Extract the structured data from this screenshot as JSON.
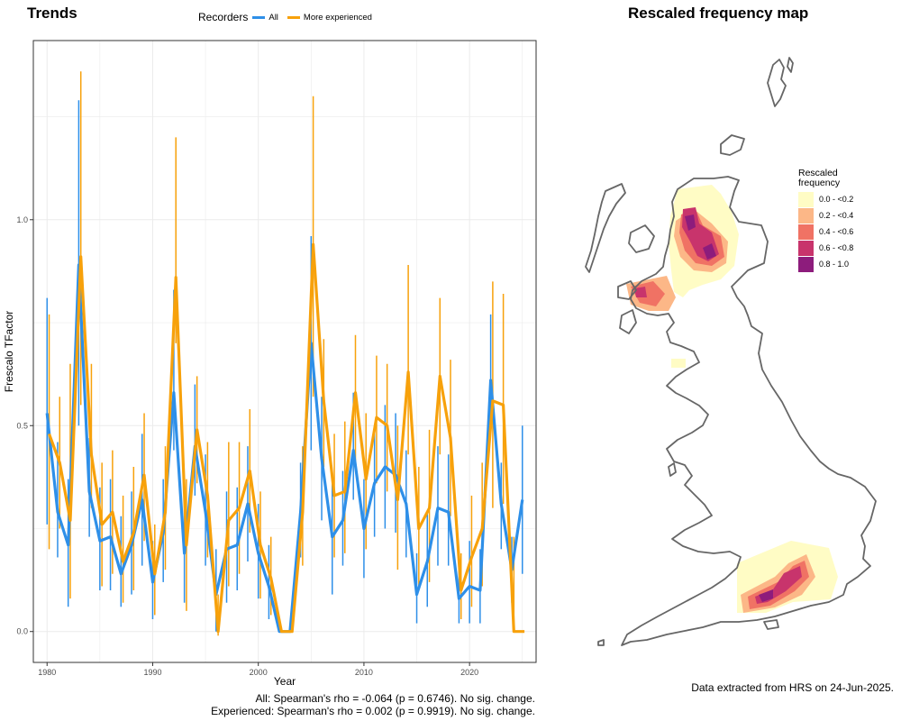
{
  "trends_panel": {
    "title": "Trends",
    "legend": {
      "title": "Recorders",
      "items": [
        {
          "label": "All",
          "color": "#2e8fe8"
        },
        {
          "label": "More experienced",
          "color": "#f7a10b"
        }
      ]
    },
    "stats": [
      "All: Spearman's rho = -0.064 (p = 0.6746). No sig. change.",
      "Experienced: Spearman's rho = 0.002 (p = 0.9919). No sig. change."
    ]
  },
  "chart_data": {
    "type": "line",
    "xlabel": "Year",
    "ylabel": "Frescalo TFactor",
    "xlim": [
      1978.7,
      2026.3
    ],
    "ylim": [
      -0.075,
      1.435
    ],
    "xticks": [
      1980,
      1990,
      2000,
      2010,
      2020
    ],
    "yticks": [
      0.0,
      0.5,
      1.0
    ],
    "ytick_labels": [
      "0.0",
      "0.5",
      "1.0"
    ],
    "grid": true,
    "legend_position": "top",
    "x": [
      1980,
      1981,
      1982,
      1983,
      1984,
      1985,
      1986,
      1987,
      1988,
      1989,
      1990,
      1991,
      1992,
      1993,
      1994,
      1995,
      1996,
      1997,
      1998,
      1999,
      2000,
      2001,
      2002,
      2003,
      2004,
      2005,
      2006,
      2007,
      2008,
      2009,
      2010,
      2011,
      2012,
      2013,
      2014,
      2015,
      2016,
      2017,
      2018,
      2019,
      2020,
      2021,
      2022,
      2023,
      2024,
      2025
    ],
    "series": [
      {
        "name": "All",
        "color": "#2e8fe8",
        "values": [
          0.53,
          0.29,
          0.21,
          0.89,
          0.34,
          0.22,
          0.23,
          0.14,
          0.21,
          0.32,
          0.12,
          0.24,
          0.58,
          0.19,
          0.45,
          0.29,
          0.09,
          0.2,
          0.21,
          0.31,
          0.19,
          0.11,
          0.0,
          0.0,
          0.29,
          0.7,
          0.42,
          0.23,
          0.27,
          0.44,
          0.25,
          0.36,
          0.4,
          0.38,
          0.31,
          0.09,
          0.17,
          0.3,
          0.29,
          0.08,
          0.11,
          0.1,
          0.61,
          0.31,
          0.15,
          0.32
        ],
        "lower": [
          0.26,
          0.18,
          0.06,
          0.5,
          0.23,
          0.1,
          0.1,
          0.06,
          0.09,
          0.16,
          0.03,
          0.12,
          0.44,
          0.07,
          0.33,
          0.16,
          0.0,
          0.07,
          0.1,
          0.17,
          0.08,
          0.03,
          0.0,
          0.0,
          0.18,
          0.44,
          0.27,
          0.09,
          0.16,
          0.32,
          0.13,
          0.23,
          0.25,
          0.24,
          0.18,
          0.02,
          0.06,
          0.16,
          0.16,
          0.02,
          0.02,
          0.02,
          0.48,
          0.2,
          0.07,
          0.14
        ],
        "upper": [
          0.81,
          0.46,
          0.37,
          1.29,
          0.47,
          0.35,
          0.37,
          0.28,
          0.34,
          0.48,
          0.22,
          0.37,
          0.83,
          0.32,
          0.6,
          0.43,
          0.2,
          0.34,
          0.35,
          0.45,
          0.31,
          0.21,
          0.0,
          0.0,
          0.41,
          0.96,
          0.57,
          0.36,
          0.39,
          0.58,
          0.37,
          0.5,
          0.55,
          0.53,
          0.44,
          0.19,
          0.29,
          0.45,
          0.43,
          0.15,
          0.22,
          0.2,
          0.77,
          0.41,
          0.23,
          0.5
        ]
      },
      {
        "name": "More experienced",
        "color": "#f7a10b",
        "values": [
          0.48,
          0.41,
          0.27,
          0.91,
          0.43,
          0.26,
          0.29,
          0.17,
          0.24,
          0.38,
          0.14,
          0.29,
          0.86,
          0.21,
          0.49,
          0.33,
          0.0,
          0.27,
          0.3,
          0.39,
          0.21,
          0.13,
          0.0,
          0.0,
          0.29,
          0.94,
          0.56,
          0.33,
          0.34,
          0.58,
          0.37,
          0.52,
          0.5,
          0.32,
          0.63,
          0.25,
          0.3,
          0.62,
          0.47,
          0.1,
          0.18,
          0.25,
          0.56,
          0.55,
          0.0,
          0.0
        ],
        "lower": [
          0.2,
          0.25,
          0.08,
          0.55,
          0.3,
          0.11,
          0.14,
          0.07,
          0.1,
          0.22,
          0.04,
          0.15,
          0.7,
          0.05,
          0.36,
          0.18,
          -0.01,
          0.11,
          0.14,
          0.24,
          0.08,
          0.04,
          0.0,
          0.0,
          0.16,
          0.57,
          0.4,
          0.18,
          0.19,
          0.41,
          0.2,
          0.36,
          0.34,
          0.15,
          0.43,
          0.1,
          0.12,
          0.43,
          0.28,
          0.03,
          0.06,
          0.11,
          0.3,
          0.31,
          0.0,
          0.0
        ],
        "upper": [
          0.77,
          0.57,
          0.65,
          1.36,
          0.65,
          0.41,
          0.44,
          0.33,
          0.4,
          0.53,
          0.26,
          0.45,
          1.2,
          0.37,
          0.62,
          0.46,
          0.09,
          0.46,
          0.46,
          0.54,
          0.34,
          0.23,
          0.0,
          0.0,
          0.45,
          1.3,
          0.71,
          0.48,
          0.51,
          0.72,
          0.53,
          0.67,
          0.65,
          0.5,
          0.89,
          0.4,
          0.49,
          0.81,
          0.66,
          0.19,
          0.33,
          0.41,
          0.85,
          0.82,
          0.23,
          0.0
        ]
      }
    ]
  },
  "map_panel": {
    "title": "Rescaled frequency map",
    "legend_title_line1": "Rescaled",
    "legend_title_line2": "frequency",
    "legend": [
      {
        "label": "0.0 - <0.2",
        "color": "#fffcc5"
      },
      {
        "label": "0.2 - <0.4",
        "color": "#fcb787"
      },
      {
        "label": "0.4 - <0.6",
        "color": "#f07264"
      },
      {
        "label": "0.6 - <0.8",
        "color": "#c8346c"
      },
      {
        "label": "0.8 - 1.0",
        "color": "#8d1c7c"
      }
    ],
    "footer": "Data extracted from HRS on 24-Jun-2025."
  }
}
